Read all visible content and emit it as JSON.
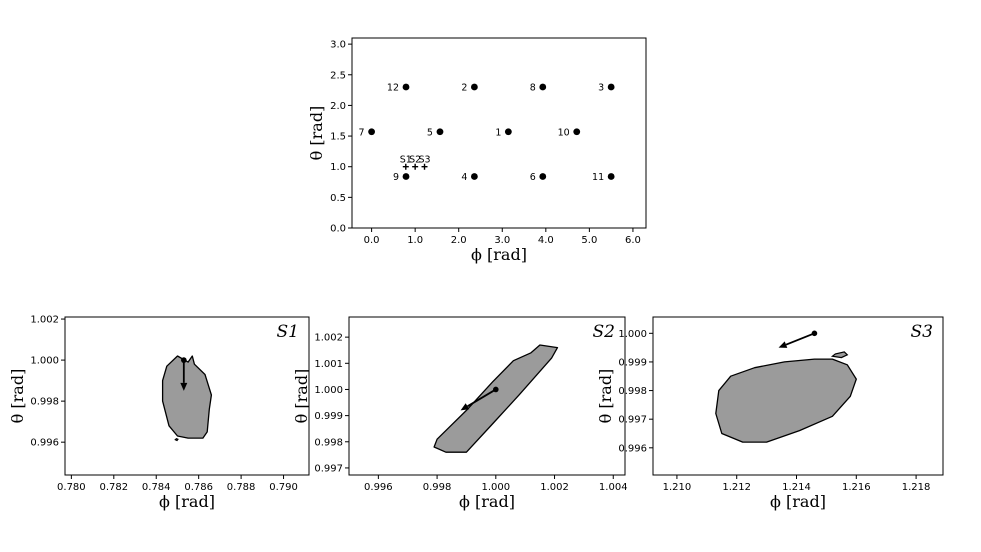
{
  "chart_data": [
    {
      "type": "scatter",
      "id": "overview",
      "xlabel": "ϕ [rad]",
      "ylabel": "θ [rad]",
      "xlim": [
        -0.45,
        6.3
      ],
      "ylim": [
        0.0,
        3.1
      ],
      "xticks": [
        "0.0",
        "1.0",
        "2.0",
        "3.0",
        "4.0",
        "5.0",
        "6.0"
      ],
      "xtick_values": [
        0,
        1,
        2,
        3,
        4,
        5,
        6
      ],
      "yticks": [
        "0.0",
        "0.5",
        "1.0",
        "1.5",
        "2.0",
        "2.5",
        "3.0"
      ],
      "ytick_values": [
        0,
        0.5,
        1,
        1.5,
        2,
        2.5,
        3
      ],
      "series": [
        {
          "marker": "dot",
          "points": [
            {
              "label": "1",
              "x": 3.14,
              "y": 1.57
            },
            {
              "label": "2",
              "x": 2.36,
              "y": 2.3
            },
            {
              "label": "3",
              "x": 5.5,
              "y": 2.3
            },
            {
              "label": "4",
              "x": 2.36,
              "y": 0.84
            },
            {
              "label": "5",
              "x": 1.57,
              "y": 1.57
            },
            {
              "label": "6",
              "x": 3.93,
              "y": 0.84
            },
            {
              "label": "7",
              "x": 0.0,
              "y": 1.57
            },
            {
              "label": "8",
              "x": 3.93,
              "y": 2.3
            },
            {
              "label": "9",
              "x": 0.79,
              "y": 0.84
            },
            {
              "label": "10",
              "x": 4.71,
              "y": 1.57
            },
            {
              "label": "11",
              "x": 5.5,
              "y": 0.84
            },
            {
              "label": "12",
              "x": 0.79,
              "y": 2.3
            }
          ]
        },
        {
          "marker": "plus",
          "points": [
            {
              "label": "S1",
              "x": 0.785,
              "y": 1.0
            },
            {
              "label": "S2",
              "x": 1.0,
              "y": 1.0
            },
            {
              "label": "S3",
              "x": 1.215,
              "y": 1.0
            }
          ]
        }
      ]
    },
    {
      "type": "area",
      "id": "S1",
      "title": "S1",
      "xlabel": "ϕ [rad]",
      "ylabel": "θ [rad]",
      "xlim": [
        0.7797,
        0.7912
      ],
      "ylim": [
        0.9944,
        1.0021
      ],
      "xticks": [
        "0.780",
        "0.782",
        "0.784",
        "0.786",
        "0.788",
        "0.790"
      ],
      "xtick_values": [
        0.78,
        0.782,
        0.784,
        0.786,
        0.788,
        0.79
      ],
      "yticks": [
        "0.996",
        "0.998",
        "1.000",
        "1.002"
      ],
      "ytick_values": [
        0.996,
        0.998,
        1.0,
        1.002
      ],
      "region": [
        [
          0.785,
          1.0002
        ],
        [
          0.7855,
          0.9999
        ],
        [
          0.7857,
          1.0002
        ],
        [
          0.7858,
          0.9998
        ],
        [
          0.7863,
          0.9993
        ],
        [
          0.7866,
          0.9983
        ],
        [
          0.7865,
          0.9976
        ],
        [
          0.7864,
          0.9965
        ],
        [
          0.7862,
          0.9962
        ],
        [
          0.7855,
          0.9962
        ],
        [
          0.785,
          0.9963
        ],
        [
          0.7846,
          0.9968
        ],
        [
          0.7843,
          0.998
        ],
        [
          0.7843,
          0.999
        ],
        [
          0.7845,
          0.9997
        ],
        [
          0.785,
          1.0002
        ]
      ],
      "extra_regions": [
        [
          [
            0.78495,
            0.99617
          ],
          [
            0.78502,
            0.99614
          ],
          [
            0.78498,
            0.99608
          ],
          [
            0.7849,
            0.99612
          ],
          [
            0.78495,
            0.99617
          ]
        ]
      ],
      "arrow": {
        "from": [
          0.7853,
          1.0
        ],
        "to": [
          0.7853,
          0.9985
        ]
      }
    },
    {
      "type": "area",
      "id": "S2",
      "title": "S2",
      "xlabel": "ϕ [rad]",
      "ylabel": "θ [rad]",
      "xlim": [
        0.995,
        1.0044
      ],
      "ylim": [
        0.99673,
        1.00277
      ],
      "xticks": [
        "0.996",
        "0.998",
        "1.000",
        "1.002",
        "1.004"
      ],
      "xtick_values": [
        0.996,
        0.998,
        1.0,
        1.002,
        1.004
      ],
      "yticks": [
        "0.997",
        "0.998",
        "0.999",
        "1.000",
        "1.001",
        "1.002"
      ],
      "ytick_values": [
        0.997,
        0.998,
        0.999,
        1.0,
        1.001,
        1.002
      ],
      "region": [
        [
          1.0015,
          1.0017
        ],
        [
          1.0021,
          1.0016
        ],
        [
          1.0019,
          1.0012
        ],
        [
          1.0008,
          0.9998
        ],
        [
          0.9999,
          0.9987
        ],
        [
          0.999,
          0.9976
        ],
        [
          0.9983,
          0.9976
        ],
        [
          0.9979,
          0.9978
        ],
        [
          0.998,
          0.9981
        ],
        [
          0.999,
          0.9992
        ],
        [
          0.9999,
          1.0003
        ],
        [
          1.0006,
          1.0011
        ],
        [
          1.0012,
          1.0014
        ],
        [
          1.0015,
          1.0017
        ]
      ],
      "extra_regions": [],
      "arrow": {
        "from": [
          1.0,
          1.0
        ],
        "to": [
          0.9988,
          0.9992
        ]
      }
    },
    {
      "type": "area",
      "id": "S3",
      "title": "S3",
      "xlabel": "ϕ [rad]",
      "ylabel": "θ [rad]",
      "xlim": [
        1.2092,
        1.2189
      ],
      "ylim": [
        0.99505,
        1.00057
      ],
      "xticks": [
        "1.210",
        "1.212",
        "1.214",
        "1.216",
        "1.218"
      ],
      "xtick_values": [
        1.21,
        1.212,
        1.214,
        1.216,
        1.218
      ],
      "yticks": [
        "0.996",
        "0.997",
        "0.998",
        "0.999",
        "1.000"
      ],
      "ytick_values": [
        0.996,
        0.997,
        0.998,
        0.999,
        1.0
      ],
      "region": [
        [
          1.2146,
          0.9991
        ],
        [
          1.2152,
          0.9991
        ],
        [
          1.2157,
          0.9989
        ],
        [
          1.216,
          0.9984
        ],
        [
          1.2158,
          0.9978
        ],
        [
          1.2152,
          0.9971
        ],
        [
          1.2141,
          0.9966
        ],
        [
          1.213,
          0.9962
        ],
        [
          1.2122,
          0.9962
        ],
        [
          1.2115,
          0.9965
        ],
        [
          1.2113,
          0.9972
        ],
        [
          1.2114,
          0.998
        ],
        [
          1.2118,
          0.9985
        ],
        [
          1.2126,
          0.9988
        ],
        [
          1.2136,
          0.999
        ],
        [
          1.2146,
          0.9991
        ]
      ],
      "extra_regions": [
        [
          [
            1.2153,
            0.99928
          ],
          [
            1.2156,
            0.99935
          ],
          [
            1.2157,
            0.99925
          ],
          [
            1.2155,
            0.99915
          ],
          [
            1.2152,
            0.9992
          ],
          [
            1.2153,
            0.99928
          ]
        ]
      ],
      "arrow": {
        "from": [
          1.2146,
          1.0
        ],
        "to": [
          1.2134,
          0.9995
        ]
      }
    }
  ]
}
